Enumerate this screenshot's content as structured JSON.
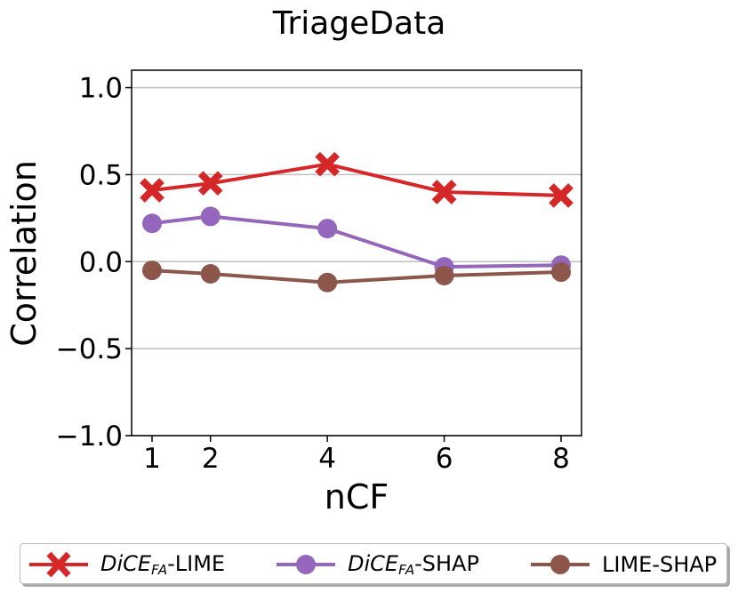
{
  "chart_data": {
    "type": "line",
    "title": "TriageData",
    "xlabel": "nCF",
    "ylabel": "Correlation",
    "x": [
      1,
      2,
      4,
      6,
      8
    ],
    "xticks": [
      "1",
      "2",
      "4",
      "6",
      "8"
    ],
    "xlim": [
      0.65,
      8.35
    ],
    "ylim": [
      -1.0,
      1.1
    ],
    "yticks": [
      "−1.0",
      "−0.5",
      "0.0",
      "0.5",
      "1.0"
    ],
    "yticks_values": [
      -1.0,
      -0.5,
      0.0,
      0.5,
      1.0
    ],
    "grid": "horizontal",
    "legend_position": "bottom",
    "series": [
      {
        "name": "DiCE_FA-LIME",
        "marker": "x",
        "color": "#d62728",
        "values": [
          0.41,
          0.45,
          0.56,
          0.4,
          0.38
        ]
      },
      {
        "name": "DiCE_FA-SHAP",
        "marker": "o",
        "color": "#9467bd",
        "values": [
          0.22,
          0.26,
          0.19,
          -0.03,
          -0.02
        ]
      },
      {
        "name": "LIME-SHAP",
        "marker": "o",
        "color": "#8c564b",
        "values": [
          -0.05,
          -0.07,
          -0.12,
          -0.08,
          -0.06
        ]
      }
    ]
  },
  "legend": {
    "items": [
      {
        "prefix": "DiCE",
        "sub": "FA",
        "suffix": "-LIME"
      },
      {
        "prefix": "DiCE",
        "sub": "FA",
        "suffix": "-SHAP"
      },
      {
        "prefix": "",
        "sub": "",
        "suffix": "LIME-SHAP"
      }
    ]
  }
}
